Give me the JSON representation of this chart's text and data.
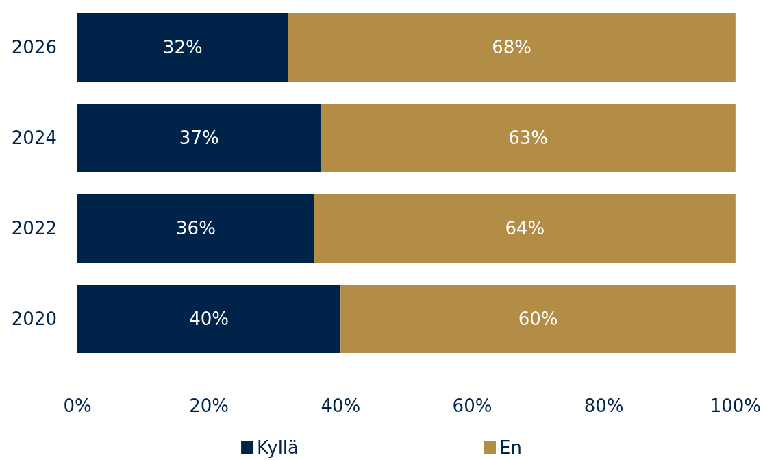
{
  "chart_data": {
    "type": "bar",
    "orientation": "horizontal",
    "stacked": true,
    "categories": [
      "2026",
      "2024",
      "2022",
      "2020"
    ],
    "series": [
      {
        "name": "Kyllä",
        "color": "#00234a",
        "values": [
          32,
          37,
          36,
          40
        ],
        "value_labels": [
          "32%",
          "37%",
          "36%",
          "40%"
        ]
      },
      {
        "name": "En",
        "color": "#b38d45",
        "values": [
          68,
          63,
          64,
          60
        ],
        "value_labels": [
          "68%",
          "63%",
          "64%",
          "60%"
        ]
      }
    ],
    "xlim": [
      0,
      100
    ],
    "xticks": [
      {
        "value": 0,
        "label": "0%"
      },
      {
        "value": 20,
        "label": "20%"
      },
      {
        "value": 40,
        "label": "40%"
      },
      {
        "value": 60,
        "label": "60%"
      },
      {
        "value": 80,
        "label": "80%"
      },
      {
        "value": 100,
        "label": "100%"
      }
    ],
    "grid": false,
    "legend": "bottom"
  }
}
